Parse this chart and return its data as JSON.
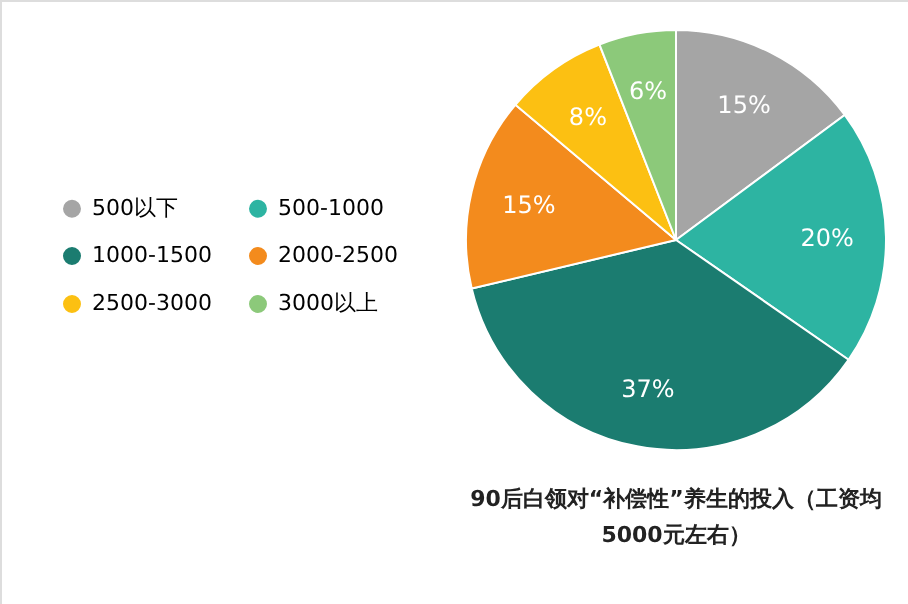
{
  "chart_data": {
    "type": "pie",
    "title": "90后白领对“补偿性”养生的投入（工资均5000元左右）",
    "categories": [
      "500以下",
      "500-1000",
      "1000-1500",
      "2000-2500",
      "2500-3000",
      "3000以上"
    ],
    "values": [
      15,
      20,
      37,
      15,
      8,
      6
    ],
    "colors": [
      "#a5a5a5",
      "#2db4a2",
      "#1b7c70",
      "#f38b1d",
      "#fcc012",
      "#8cc97a"
    ],
    "value_labels": [
      "15%",
      "20%",
      "37%",
      "15%",
      "8%",
      "6%"
    ],
    "legend": "left"
  }
}
